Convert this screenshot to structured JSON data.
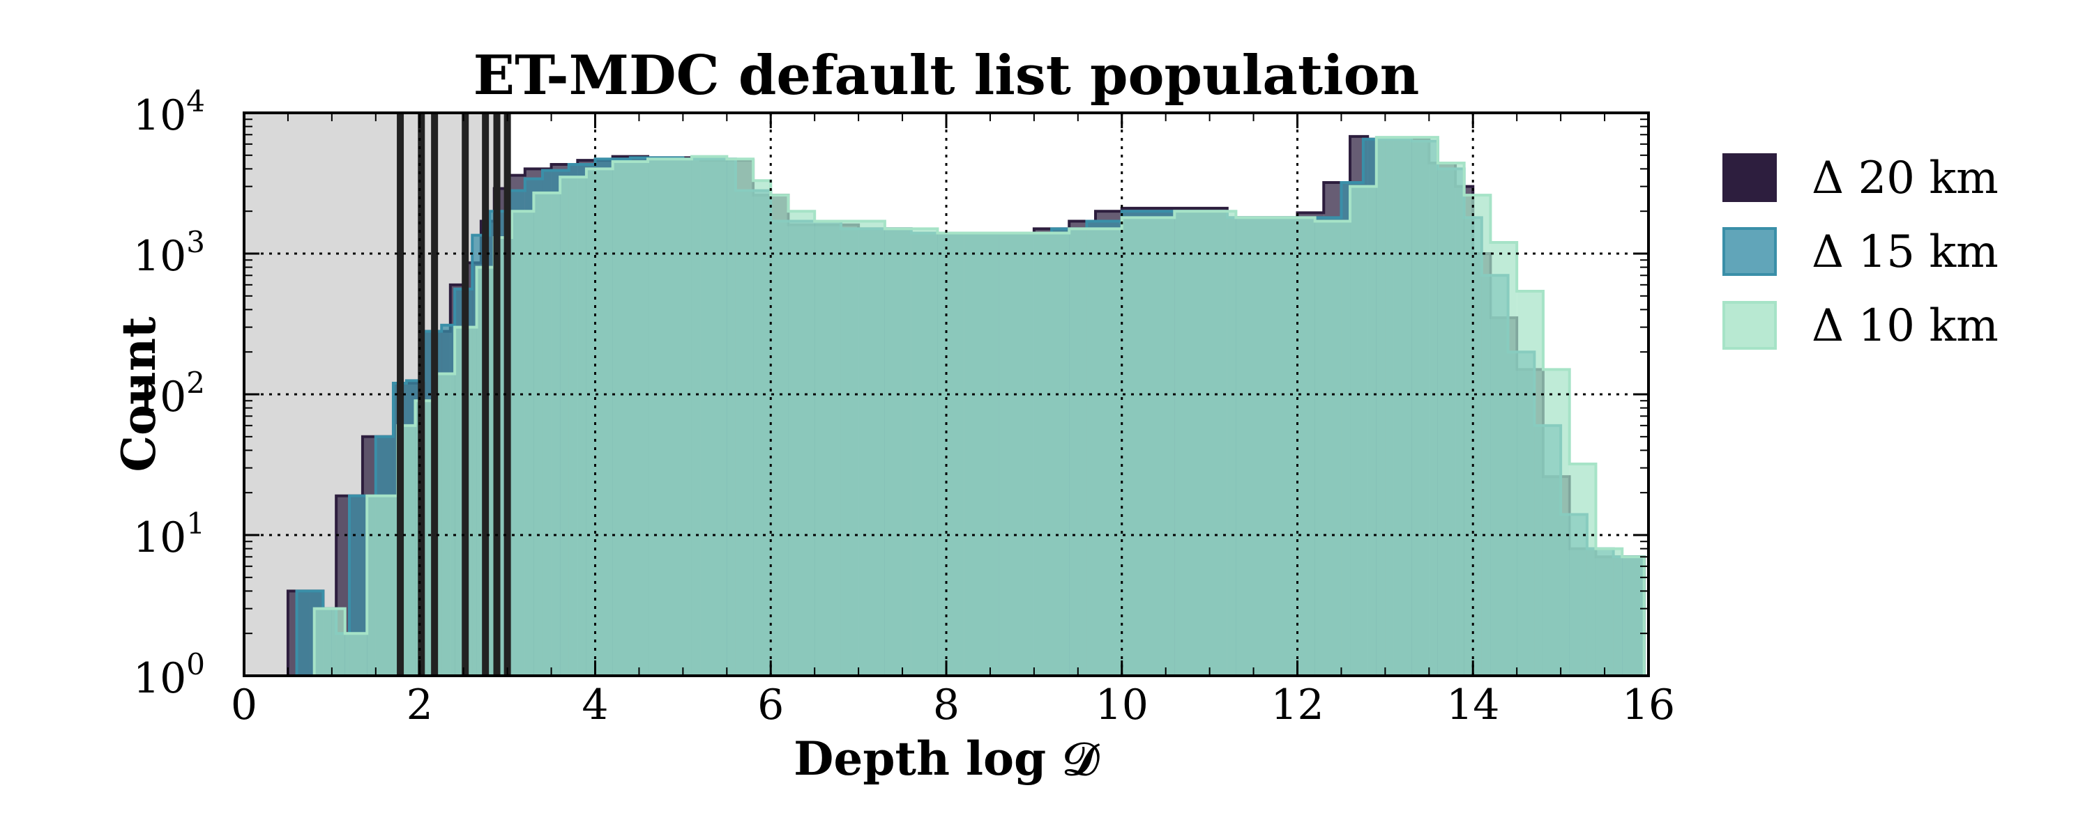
{
  "chart_data": {
    "type": "histogram",
    "title": "ET-MDC default list population",
    "xlabel": "Depth log 𝒟",
    "ylabel": "Count",
    "xlim": [
      0,
      16
    ],
    "ylim": [
      1,
      10000
    ],
    "yscale": "log",
    "grid": true,
    "grid_style": "dotted",
    "legend_position": "right, outside",
    "x_ticks": [
      "0",
      "2",
      "4",
      "6",
      "8",
      "10",
      "12",
      "14",
      "16"
    ],
    "y_ticks": [
      {
        "base": "10",
        "exp": "0"
      },
      {
        "base": "10",
        "exp": "1"
      },
      {
        "base": "10",
        "exp": "2"
      },
      {
        "base": "10",
        "exp": "3"
      },
      {
        "base": "10",
        "exp": "4"
      }
    ],
    "shaded_region": {
      "x_start": 0,
      "x_end": 3,
      "color": "#d9d9d9"
    },
    "vertical_lines_x": [
      1.78,
      2.02,
      2.17,
      2.52,
      2.75,
      2.88,
      3.0
    ],
    "series": [
      {
        "name": "Δ 20 km",
        "color": "#2d1e3e",
        "bins": [
          [
            0.5,
            0.62,
            4
          ],
          [
            0.62,
            0.75,
            4
          ],
          [
            0.75,
            0.9,
            4
          ],
          [
            0.9,
            1.05,
            3
          ],
          [
            1.05,
            1.2,
            19
          ],
          [
            1.2,
            1.35,
            19
          ],
          [
            1.35,
            1.5,
            50
          ],
          [
            1.5,
            1.7,
            50
          ],
          [
            1.7,
            1.85,
            120
          ],
          [
            1.85,
            2.0,
            120
          ],
          [
            2.0,
            2.2,
            280
          ],
          [
            2.2,
            2.35,
            280
          ],
          [
            2.35,
            2.5,
            600
          ],
          [
            2.5,
            2.7,
            860
          ],
          [
            2.7,
            2.85,
            1700
          ],
          [
            2.85,
            3.0,
            2900
          ],
          [
            3.0,
            3.2,
            3600
          ],
          [
            3.2,
            3.5,
            4000
          ],
          [
            3.5,
            3.8,
            4300
          ],
          [
            3.8,
            4.2,
            4600
          ],
          [
            4.2,
            4.6,
            4900
          ],
          [
            4.6,
            5.2,
            4800
          ],
          [
            5.2,
            5.8,
            4600
          ],
          [
            5.8,
            6.2,
            2600
          ],
          [
            6.2,
            7.0,
            1600
          ],
          [
            7.0,
            7.6,
            1500
          ],
          [
            7.6,
            8.2,
            1400
          ],
          [
            8.2,
            9.0,
            1400
          ],
          [
            9.0,
            9.4,
            1500
          ],
          [
            9.4,
            9.7,
            1700
          ],
          [
            9.7,
            10.0,
            2000
          ],
          [
            10.0,
            10.6,
            2100
          ],
          [
            10.6,
            11.2,
            2100
          ],
          [
            11.2,
            12.0,
            1800
          ],
          [
            12.0,
            12.3,
            1950
          ],
          [
            12.3,
            12.6,
            3200
          ],
          [
            12.6,
            12.8,
            6800
          ],
          [
            12.8,
            13.1,
            6500
          ],
          [
            13.1,
            13.5,
            6500
          ],
          [
            13.5,
            13.8,
            4400
          ],
          [
            13.8,
            14.0,
            3000
          ],
          [
            14.0,
            14.2,
            1000
          ],
          [
            14.2,
            14.5,
            350
          ],
          [
            14.5,
            14.8,
            150
          ],
          [
            14.8,
            15.1,
            26
          ],
          [
            15.1,
            15.4,
            8
          ],
          [
            15.4,
            15.7,
            7
          ],
          [
            15.7,
            15.95,
            7
          ]
        ]
      },
      {
        "name": "Δ 15 km",
        "color": "#3a8fa8",
        "bins": [
          [
            0.6,
            0.75,
            4
          ],
          [
            0.75,
            0.9,
            4
          ],
          [
            0.9,
            1.05,
            3
          ],
          [
            1.05,
            1.2,
            2
          ],
          [
            1.2,
            1.35,
            19
          ],
          [
            1.35,
            1.5,
            19
          ],
          [
            1.5,
            1.7,
            50
          ],
          [
            1.7,
            1.85,
            120
          ],
          [
            1.85,
            2.05,
            125
          ],
          [
            2.05,
            2.25,
            280
          ],
          [
            2.25,
            2.4,
            310
          ],
          [
            2.4,
            2.6,
            560
          ],
          [
            2.6,
            2.8,
            1350
          ],
          [
            2.8,
            3.0,
            2000
          ],
          [
            3.0,
            3.2,
            2800
          ],
          [
            3.2,
            3.4,
            3400
          ],
          [
            3.4,
            3.7,
            3900
          ],
          [
            3.7,
            4.0,
            4300
          ],
          [
            4.0,
            4.4,
            4700
          ],
          [
            4.4,
            5.0,
            4800
          ],
          [
            5.0,
            5.6,
            4700
          ],
          [
            5.6,
            6.0,
            2800
          ],
          [
            6.0,
            6.8,
            1700
          ],
          [
            6.8,
            7.6,
            1500
          ],
          [
            7.6,
            8.2,
            1400
          ],
          [
            8.2,
            9.2,
            1400
          ],
          [
            9.2,
            9.6,
            1500
          ],
          [
            9.6,
            10.0,
            1700
          ],
          [
            10.0,
            10.6,
            2000
          ],
          [
            10.6,
            11.2,
            2000
          ],
          [
            11.2,
            12.1,
            1800
          ],
          [
            12.1,
            12.5,
            1800
          ],
          [
            12.5,
            12.75,
            3200
          ],
          [
            12.75,
            13.0,
            6500
          ],
          [
            13.0,
            13.3,
            6500
          ],
          [
            13.3,
            13.6,
            6300
          ],
          [
            13.6,
            13.9,
            4000
          ],
          [
            13.9,
            14.1,
            1800
          ],
          [
            14.1,
            14.4,
            700
          ],
          [
            14.4,
            14.7,
            200
          ],
          [
            14.7,
            15.0,
            60
          ],
          [
            15.0,
            15.3,
            14
          ],
          [
            15.3,
            15.6,
            8
          ],
          [
            15.6,
            15.95,
            7
          ]
        ]
      },
      {
        "name": "Δ 10 km",
        "color": "#a6e3c7",
        "bins": [
          [
            0.8,
            1.0,
            3
          ],
          [
            1.0,
            1.15,
            3
          ],
          [
            1.15,
            1.4,
            2
          ],
          [
            1.4,
            1.75,
            19
          ],
          [
            1.75,
            1.95,
            60
          ],
          [
            1.95,
            2.15,
            90
          ],
          [
            2.15,
            2.4,
            140
          ],
          [
            2.4,
            2.65,
            300
          ],
          [
            2.65,
            2.85,
            800
          ],
          [
            2.85,
            3.05,
            1300
          ],
          [
            3.05,
            3.3,
            2000
          ],
          [
            3.3,
            3.6,
            2700
          ],
          [
            3.6,
            3.9,
            3500
          ],
          [
            3.9,
            4.2,
            4000
          ],
          [
            4.2,
            4.6,
            4500
          ],
          [
            4.6,
            5.1,
            4700
          ],
          [
            5.1,
            5.5,
            4900
          ],
          [
            5.5,
            5.8,
            4700
          ],
          [
            5.8,
            6.0,
            3300
          ],
          [
            6.0,
            6.2,
            2600
          ],
          [
            6.2,
            6.5,
            2000
          ],
          [
            6.5,
            7.3,
            1700
          ],
          [
            7.3,
            7.9,
            1500
          ],
          [
            7.9,
            8.6,
            1400
          ],
          [
            8.6,
            9.4,
            1400
          ],
          [
            9.4,
            10.0,
            1500
          ],
          [
            10.0,
            10.6,
            1800
          ],
          [
            10.6,
            11.3,
            2000
          ],
          [
            11.3,
            12.2,
            1800
          ],
          [
            12.2,
            12.6,
            1700
          ],
          [
            12.6,
            12.9,
            3000
          ],
          [
            12.9,
            13.3,
            6700
          ],
          [
            13.3,
            13.6,
            6700
          ],
          [
            13.6,
            13.9,
            4400
          ],
          [
            13.9,
            14.2,
            2600
          ],
          [
            14.2,
            14.5,
            1200
          ],
          [
            14.5,
            14.8,
            540
          ],
          [
            14.8,
            15.1,
            150
          ],
          [
            15.1,
            15.4,
            32
          ],
          [
            15.4,
            15.7,
            8
          ],
          [
            15.7,
            15.95,
            7
          ]
        ]
      }
    ]
  }
}
